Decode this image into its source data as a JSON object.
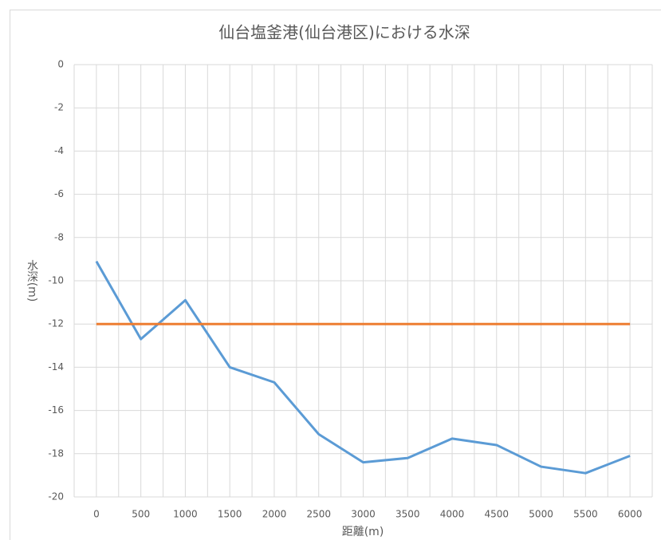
{
  "chart_data": {
    "type": "line",
    "title": "仙台塩釜港(仙台港区)における水深",
    "x_label": "距離(m)",
    "y_label": "水深(m)",
    "x": [
      0,
      500,
      1000,
      1500,
      2000,
      2500,
      3000,
      3500,
      4000,
      4500,
      5000,
      5500,
      6000
    ],
    "series": [
      {
        "color": "#5b9bd5",
        "values": [
          -9.1,
          -12.7,
          -10.9,
          -14.0,
          -14.7,
          -17.1,
          -18.4,
          -18.2,
          -17.3,
          -17.6,
          -18.6,
          -18.9,
          -18.1
        ]
      },
      {
        "color": "#ed7d31",
        "values": [
          -12,
          -12,
          -12,
          -12,
          -12,
          -12,
          -12,
          -12,
          -12,
          -12,
          -12,
          -12,
          -12
        ]
      }
    ],
    "xlim": [
      -250,
      6250
    ],
    "xticks": [
      0,
      500,
      1000,
      1500,
      2000,
      2500,
      3000,
      3500,
      4000,
      4500,
      5000,
      5500,
      6000
    ],
    "ylim": [
      -20,
      0
    ],
    "yticks": [
      -20,
      -18,
      -16,
      -14,
      -12,
      -10,
      -8,
      -6,
      -4,
      -2,
      0
    ],
    "grid": true
  }
}
